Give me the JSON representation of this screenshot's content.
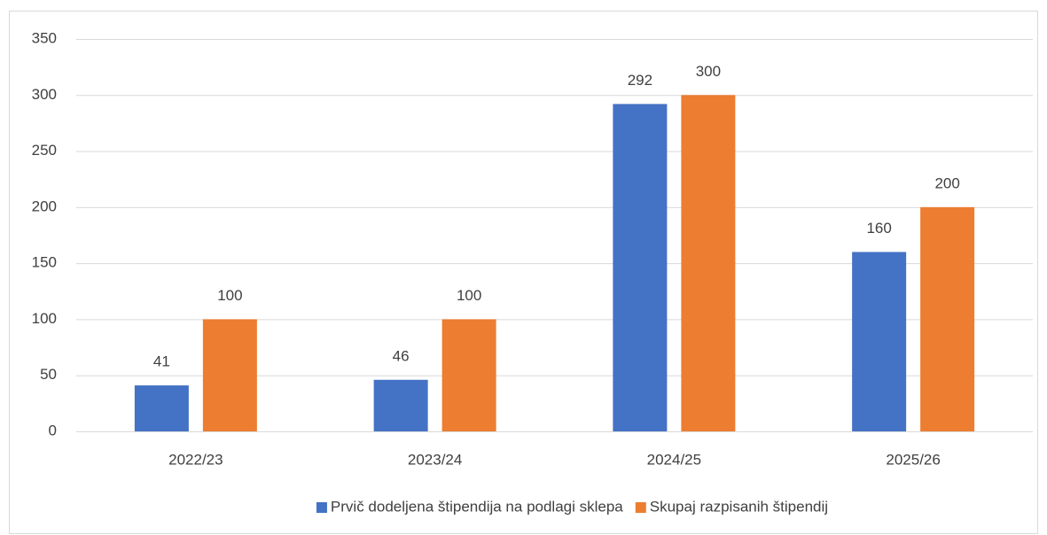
{
  "chart_data": {
    "type": "bar",
    "categories": [
      "2022/23",
      "2023/24",
      "2024/25",
      "2025/26"
    ],
    "series": [
      {
        "name": "Prvič dodeljena štipendija na podlagi sklepa",
        "color": "#4472c4",
        "values": [
          41,
          46,
          292,
          160
        ]
      },
      {
        "name": "Skupaj razpisanih štipendij",
        "color": "#ed7d31",
        "values": [
          100,
          100,
          300,
          200
        ]
      }
    ],
    "ylim": [
      0,
      350
    ],
    "yticks": [
      0,
      50,
      100,
      150,
      200,
      250,
      300,
      350
    ],
    "grid": true,
    "legend": "bottom"
  }
}
